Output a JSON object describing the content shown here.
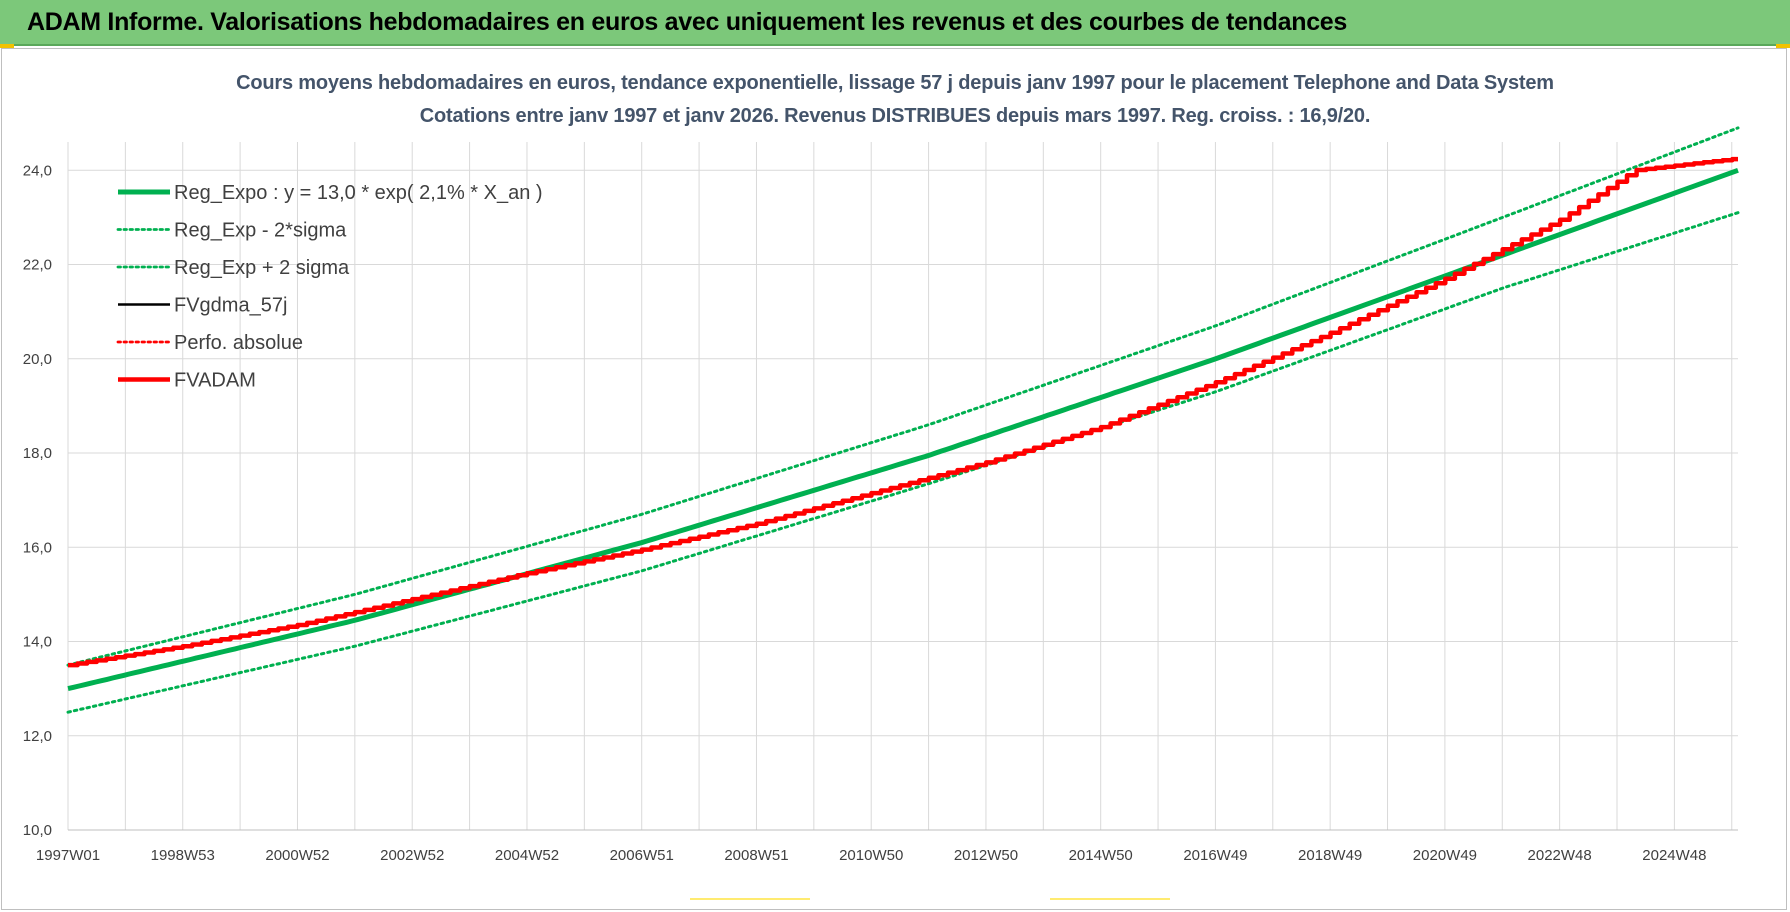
{
  "header": {
    "title": "ADAM Informe. Valorisations hebdomadaires en euros avec uniquement les revenus et des courbes de tendances"
  },
  "chart_data": {
    "type": "line",
    "title_line1": "Cours moyens hebdomadaires en euros, tendance exponentielle, lissage 57 j depuis janv 1997  pour le placement Telephone and Data System",
    "title_line2": "Cotations entre janv 1997 et janv 2026. Revenus DISTRIBUES depuis mars 1997. Reg. croiss. : 16,9/20.",
    "xlabel": "",
    "ylabel": "",
    "x_tick_labels": [
      "1997W01",
      "1998W53",
      "2000W52",
      "2002W52",
      "2004W52",
      "2006W51",
      "2008W51",
      "2010W50",
      "2012W50",
      "2014W50",
      "2016W49",
      "2018W49",
      "2020W49",
      "2022W48",
      "2024W48"
    ],
    "x_range_years": [
      1997.0,
      2026.1
    ],
    "y_tick_labels": [
      "10,0",
      "12,0",
      "14,0",
      "16,0",
      "18,0",
      "20,0",
      "22,0",
      "24,0"
    ],
    "ylim": [
      10,
      24.6
    ],
    "grid": true,
    "legend_position": "top-left",
    "series": [
      {
        "name": "Reg_Expo : y = 13,0 * exp( 2,1% *  X_an )",
        "color": "#00b050",
        "style": "solid-thick",
        "points": [
          [
            1997.0,
            13.0
          ],
          [
            2002.0,
            14.45
          ],
          [
            2007.0,
            16.1
          ],
          [
            2012.0,
            17.95
          ],
          [
            2017.0,
            20.0
          ],
          [
            2022.0,
            22.2
          ],
          [
            2026.1,
            24.0
          ]
        ]
      },
      {
        "name": "Reg_Exp - 2*sigma",
        "color": "#00b050",
        "style": "dotted",
        "points": [
          [
            1997.0,
            12.5
          ],
          [
            2002.0,
            13.9
          ],
          [
            2007.0,
            15.5
          ],
          [
            2012.0,
            17.35
          ],
          [
            2017.0,
            19.3
          ],
          [
            2022.0,
            21.5
          ],
          [
            2026.1,
            23.1
          ]
        ]
      },
      {
        "name": "Reg_Exp + 2 sigma",
        "color": "#00b050",
        "style": "dotted",
        "points": [
          [
            1997.0,
            13.5
          ],
          [
            2002.0,
            15.0
          ],
          [
            2007.0,
            16.7
          ],
          [
            2012.0,
            18.6
          ],
          [
            2017.0,
            20.7
          ],
          [
            2022.0,
            23.0
          ],
          [
            2026.1,
            24.9
          ]
        ]
      },
      {
        "name": "FVgdma_57j",
        "color": "#000000",
        "style": "solid",
        "points": []
      },
      {
        "name": "Perfo. absolue",
        "color": "#ff0000",
        "style": "dotted",
        "points": []
      },
      {
        "name": "FVADAM",
        "color": "#ff0000",
        "style": "stepped-thick",
        "points": [
          [
            1997.0,
            13.5
          ],
          [
            1999.0,
            13.9
          ],
          [
            2001.0,
            14.35
          ],
          [
            2003.0,
            14.9
          ],
          [
            2005.0,
            15.45
          ],
          [
            2007.0,
            15.95
          ],
          [
            2009.0,
            16.5
          ],
          [
            2011.0,
            17.15
          ],
          [
            2013.0,
            17.8
          ],
          [
            2015.0,
            18.55
          ],
          [
            2017.0,
            19.5
          ],
          [
            2019.0,
            20.55
          ],
          [
            2021.0,
            21.7
          ],
          [
            2023.0,
            22.95
          ],
          [
            2024.3,
            24.0
          ],
          [
            2025.0,
            24.1
          ],
          [
            2026.1,
            24.25
          ]
        ]
      }
    ]
  }
}
